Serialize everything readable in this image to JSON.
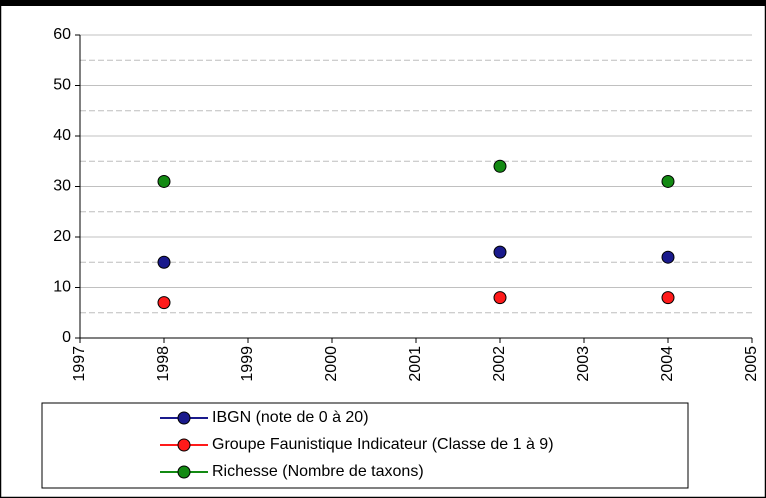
{
  "chart_data": {
    "type": "scatter",
    "x": [
      1998,
      2002,
      2004
    ],
    "series": [
      {
        "name": "IBGN (note de 0 à 20)",
        "color": "#1a1a8c",
        "values": [
          15,
          17,
          16
        ]
      },
      {
        "name": "Groupe Faunistique Indicateur (Classe de 1 à 9)",
        "color": "#ff1a1a",
        "values": [
          7,
          8,
          8
        ]
      },
      {
        "name": "Richesse (Nombre de taxons)",
        "color": "#138a13",
        "values": [
          31,
          34,
          31
        ]
      }
    ],
    "xlim": [
      1997,
      2005
    ],
    "xticks": [
      1997,
      1998,
      1999,
      2000,
      2001,
      2002,
      2003,
      2004,
      2005
    ],
    "ylim": [
      0,
      60
    ],
    "yticks": [
      0,
      10,
      20,
      30,
      40,
      50,
      60
    ],
    "y_minor_ticks": [
      5,
      15,
      25,
      35,
      45,
      55
    ],
    "grid": true,
    "legend": "bottom"
  }
}
